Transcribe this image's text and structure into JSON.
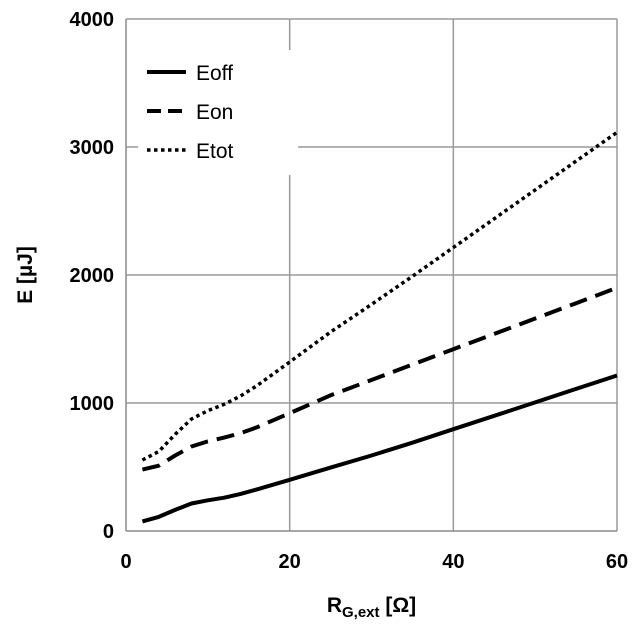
{
  "chart_data": {
    "type": "line",
    "title": "",
    "xlabel_main": "R",
    "xlabel_sub": "G,ext",
    "xlabel_unit": " [Ω]",
    "ylabel": "E [µJ]",
    "xlim": [
      0,
      60
    ],
    "ylim": [
      0,
      4000
    ],
    "x_ticks": [
      0,
      20,
      40,
      60
    ],
    "y_ticks": [
      0,
      1000,
      2000,
      3000,
      4000
    ],
    "grid": true,
    "legend_position": "top-left",
    "series": [
      {
        "name": "Eoff",
        "style": "solid",
        "x": [
          2,
          4,
          6,
          8,
          10,
          12,
          14,
          16,
          20,
          25,
          30,
          35,
          40,
          45,
          50,
          55,
          60
        ],
        "y": [
          75,
          110,
          165,
          215,
          240,
          260,
          290,
          325,
          400,
          495,
          590,
          690,
          795,
          900,
          1005,
          1110,
          1215
        ]
      },
      {
        "name": "Eon",
        "style": "dashed",
        "x": [
          2,
          4,
          6,
          8,
          10,
          12,
          14,
          16,
          20,
          25,
          30,
          35,
          40,
          45,
          50,
          55,
          60
        ],
        "y": [
          480,
          510,
          590,
          660,
          700,
          730,
          765,
          810,
          920,
          1060,
          1180,
          1300,
          1420,
          1540,
          1660,
          1780,
          1900
        ]
      },
      {
        "name": "Etot",
        "style": "dotted",
        "x": [
          2,
          4,
          6,
          8,
          10,
          12,
          14,
          16,
          20,
          25,
          30,
          35,
          40,
          45,
          50,
          55,
          60
        ],
        "y": [
          555,
          620,
          755,
          875,
          940,
          990,
          1055,
          1135,
          1320,
          1555,
          1770,
          1990,
          2215,
          2440,
          2665,
          2890,
          3115
        ]
      }
    ]
  }
}
